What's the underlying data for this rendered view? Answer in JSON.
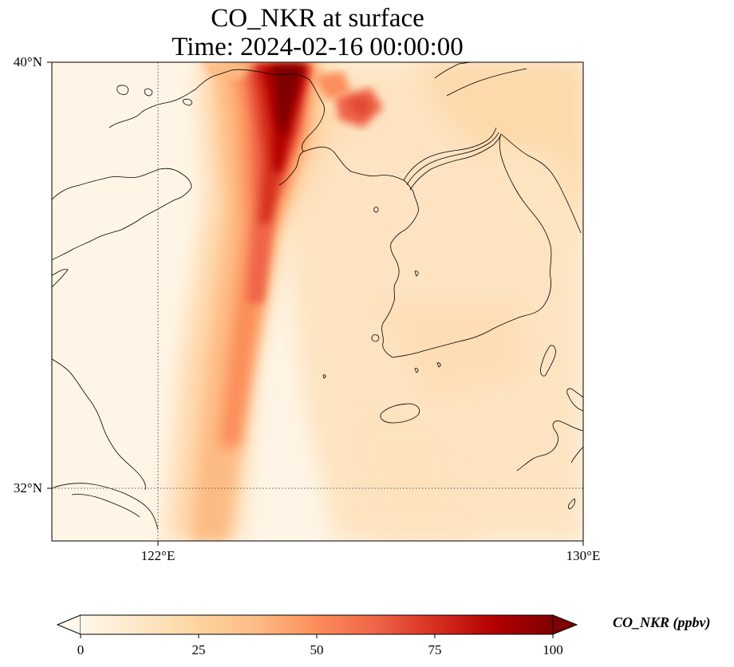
{
  "title": {
    "line1": "CO_NKR at surface",
    "line2": "Time: 2024-02-16 00:00:00"
  },
  "axes": {
    "lat_labels": [
      "40°N",
      "32°N"
    ],
    "lon_labels": [
      "122°E",
      "130°E"
    ]
  },
  "colorbar": {
    "label": "CO_NKR (ppbv)",
    "ticks": [
      "0",
      "25",
      "50",
      "75",
      "100"
    ],
    "colormap": "OrRd",
    "vmin": 0,
    "vmax": 100,
    "extend": "both"
  },
  "map": {
    "projection": "Lambert conformal",
    "extent": {
      "lon_min": 120,
      "lon_max": 130,
      "lat_min": 31,
      "lat_max": 40
    },
    "gridlines": {
      "lons": [
        122
      ],
      "lats": [
        32
      ],
      "style": "dotted"
    },
    "features": [
      "coastlines",
      "borders"
    ]
  }
}
